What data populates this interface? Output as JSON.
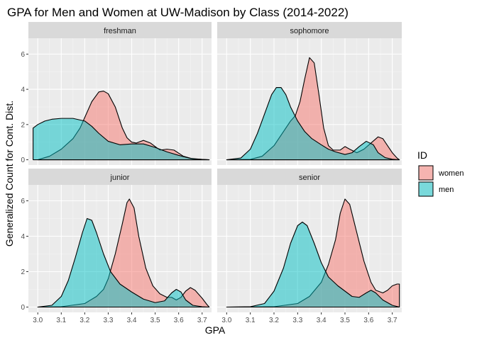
{
  "chart_data": {
    "type": "area",
    "title": "GPA for Men and Women at UW-Madison by Class (2014-2022)",
    "xlabel": "GPA",
    "ylabel": "Generalized Count for Cont. Dist.",
    "xlim": [
      2.96,
      3.74
    ],
    "ylim": [
      -0.3,
      6.9
    ],
    "x_ticks": [
      "3.0",
      "3.1",
      "3.2",
      "3.3",
      "3.4",
      "3.5",
      "3.6",
      "3.7"
    ],
    "y_ticks": [
      "0",
      "2",
      "4",
      "6"
    ],
    "grid": true,
    "legend": {
      "title": "ID",
      "position": "right",
      "entries": [
        {
          "label": "women",
          "color": "#F8766D"
        },
        {
          "label": "men",
          "color": "#00BFC4"
        }
      ]
    },
    "panels": [
      {
        "label": "freshman",
        "series": [
          {
            "name": "women",
            "color": "#F8766D",
            "points": [
              [
                3.0,
                0
              ],
              [
                3.05,
                0.2
              ],
              [
                3.1,
                0.6
              ],
              [
                3.15,
                1.2
              ],
              [
                3.18,
                1.8
              ],
              [
                3.2,
                2.4
              ],
              [
                3.23,
                3.3
              ],
              [
                3.26,
                3.85
              ],
              [
                3.28,
                3.9
              ],
              [
                3.3,
                3.75
              ],
              [
                3.33,
                3.0
              ],
              [
                3.36,
                1.8
              ],
              [
                3.38,
                1.25
              ],
              [
                3.4,
                1.0
              ],
              [
                3.42,
                0.95
              ],
              [
                3.45,
                1.1
              ],
              [
                3.48,
                0.95
              ],
              [
                3.52,
                0.55
              ],
              [
                3.55,
                0.6
              ],
              [
                3.58,
                0.55
              ],
              [
                3.62,
                0.2
              ],
              [
                3.66,
                0.05
              ],
              [
                3.73,
                0
              ]
            ]
          },
          {
            "name": "men",
            "color": "#00BFC4",
            "points": [
              [
                2.98,
                1.8
              ],
              [
                3.0,
                2.0
              ],
              [
                3.03,
                2.2
              ],
              [
                3.06,
                2.3
              ],
              [
                3.1,
                2.35
              ],
              [
                3.15,
                2.35
              ],
              [
                3.2,
                2.2
              ],
              [
                3.23,
                1.9
              ],
              [
                3.26,
                1.5
              ],
              [
                3.3,
                1.05
              ],
              [
                3.35,
                0.85
              ],
              [
                3.4,
                0.9
              ],
              [
                3.45,
                0.9
              ],
              [
                3.5,
                0.7
              ],
              [
                3.55,
                0.45
              ],
              [
                3.6,
                0.25
              ],
              [
                3.65,
                0.08
              ],
              [
                3.7,
                0.02
              ],
              [
                3.73,
                0
              ]
            ]
          }
        ]
      },
      {
        "label": "sophomore",
        "series": [
          {
            "name": "women",
            "color": "#F8766D",
            "points": [
              [
                3.0,
                0
              ],
              [
                3.1,
                0.02
              ],
              [
                3.15,
                0.2
              ],
              [
                3.2,
                0.8
              ],
              [
                3.24,
                1.6
              ],
              [
                3.27,
                2.2
              ],
              [
                3.29,
                2.5
              ],
              [
                3.31,
                3.3
              ],
              [
                3.33,
                4.6
              ],
              [
                3.35,
                5.8
              ],
              [
                3.37,
                5.5
              ],
              [
                3.39,
                3.7
              ],
              [
                3.41,
                1.8
              ],
              [
                3.43,
                0.8
              ],
              [
                3.45,
                0.55
              ],
              [
                3.48,
                0.55
              ],
              [
                3.5,
                0.75
              ],
              [
                3.52,
                0.6
              ],
              [
                3.55,
                0.4
              ],
              [
                3.58,
                0.6
              ],
              [
                3.61,
                0.95
              ],
              [
                3.64,
                1.3
              ],
              [
                3.66,
                1.2
              ],
              [
                3.68,
                0.8
              ],
              [
                3.7,
                0.4
              ],
              [
                3.72,
                0.1
              ],
              [
                3.73,
                0
              ]
            ]
          },
          {
            "name": "men",
            "color": "#00BFC4",
            "points": [
              [
                3.0,
                0
              ],
              [
                3.06,
                0.1
              ],
              [
                3.1,
                0.6
              ],
              [
                3.13,
                1.5
              ],
              [
                3.16,
                2.6
              ],
              [
                3.19,
                3.7
              ],
              [
                3.21,
                4.1
              ],
              [
                3.23,
                4.1
              ],
              [
                3.25,
                3.7
              ],
              [
                3.27,
                3.0
              ],
              [
                3.3,
                2.2
              ],
              [
                3.33,
                1.6
              ],
              [
                3.36,
                1.2
              ],
              [
                3.4,
                0.85
              ],
              [
                3.43,
                0.6
              ],
              [
                3.46,
                0.45
              ],
              [
                3.5,
                0.3
              ],
              [
                3.53,
                0.4
              ],
              [
                3.56,
                0.75
              ],
              [
                3.59,
                1.05
              ],
              [
                3.62,
                0.85
              ],
              [
                3.64,
                0.4
              ],
              [
                3.67,
                0.12
              ],
              [
                3.7,
                0.03
              ],
              [
                3.73,
                0
              ]
            ]
          }
        ]
      },
      {
        "label": "junior",
        "series": [
          {
            "name": "women",
            "color": "#F8766D",
            "points": [
              [
                3.0,
                0
              ],
              [
                3.1,
                0.02
              ],
              [
                3.2,
                0.2
              ],
              [
                3.25,
                0.6
              ],
              [
                3.28,
                1.0
              ],
              [
                3.3,
                1.6
              ],
              [
                3.33,
                3.0
              ],
              [
                3.36,
                4.7
              ],
              [
                3.38,
                5.9
              ],
              [
                3.39,
                6.1
              ],
              [
                3.41,
                5.6
              ],
              [
                3.43,
                4.0
              ],
              [
                3.46,
                2.2
              ],
              [
                3.49,
                1.2
              ],
              [
                3.52,
                0.75
              ],
              [
                3.55,
                0.55
              ],
              [
                3.57,
                0.55
              ],
              [
                3.59,
                0.4
              ],
              [
                3.61,
                0.55
              ],
              [
                3.63,
                0.9
              ],
              [
                3.65,
                1.1
              ],
              [
                3.67,
                0.95
              ],
              [
                3.7,
                0.5
              ],
              [
                3.72,
                0.15
              ],
              [
                3.73,
                0
              ]
            ]
          },
          {
            "name": "men",
            "color": "#00BFC4",
            "points": [
              [
                3.0,
                0
              ],
              [
                3.06,
                0.1
              ],
              [
                3.1,
                0.6
              ],
              [
                3.13,
                1.5
              ],
              [
                3.16,
                2.8
              ],
              [
                3.19,
                4.2
              ],
              [
                3.21,
                5.0
              ],
              [
                3.23,
                4.9
              ],
              [
                3.25,
                4.2
              ],
              [
                3.28,
                3.0
              ],
              [
                3.31,
                2.0
              ],
              [
                3.35,
                1.3
              ],
              [
                3.4,
                0.85
              ],
              [
                3.45,
                0.45
              ],
              [
                3.5,
                0.25
              ],
              [
                3.54,
                0.35
              ],
              [
                3.57,
                0.8
              ],
              [
                3.59,
                1.0
              ],
              [
                3.61,
                0.85
              ],
              [
                3.63,
                0.4
              ],
              [
                3.66,
                0.1
              ],
              [
                3.7,
                0.02
              ],
              [
                3.73,
                0
              ]
            ]
          }
        ]
      },
      {
        "label": "senior",
        "series": [
          {
            "name": "women",
            "color": "#F8766D",
            "points": [
              [
                3.0,
                0
              ],
              [
                3.2,
                0.02
              ],
              [
                3.3,
                0.2
              ],
              [
                3.35,
                0.6
              ],
              [
                3.4,
                1.4
              ],
              [
                3.43,
                2.4
              ],
              [
                3.46,
                3.8
              ],
              [
                3.48,
                5.3
              ],
              [
                3.5,
                6.1
              ],
              [
                3.52,
                5.8
              ],
              [
                3.55,
                4.2
              ],
              [
                3.58,
                2.6
              ],
              [
                3.61,
                1.4
              ],
              [
                3.63,
                0.95
              ],
              [
                3.66,
                0.8
              ],
              [
                3.68,
                0.95
              ],
              [
                3.7,
                1.2
              ],
              [
                3.72,
                1.3
              ],
              [
                3.73,
                1.3
              ]
            ]
          },
          {
            "name": "men",
            "color": "#00BFC4",
            "points": [
              [
                3.0,
                0
              ],
              [
                3.1,
                0.02
              ],
              [
                3.16,
                0.2
              ],
              [
                3.2,
                0.9
              ],
              [
                3.24,
                2.2
              ],
              [
                3.27,
                3.6
              ],
              [
                3.3,
                4.6
              ],
              [
                3.32,
                4.8
              ],
              [
                3.34,
                4.6
              ],
              [
                3.37,
                3.6
              ],
              [
                3.4,
                2.5
              ],
              [
                3.43,
                1.7
              ],
              [
                3.47,
                1.2
              ],
              [
                3.5,
                0.9
              ],
              [
                3.53,
                0.6
              ],
              [
                3.56,
                0.55
              ],
              [
                3.59,
                0.8
              ],
              [
                3.61,
                0.95
              ],
              [
                3.63,
                0.8
              ],
              [
                3.66,
                0.4
              ],
              [
                3.7,
                0.1
              ],
              [
                3.73,
                0
              ]
            ]
          }
        ]
      }
    ]
  }
}
